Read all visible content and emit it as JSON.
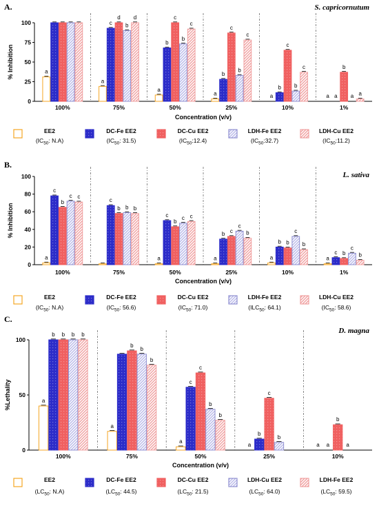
{
  "colors": {
    "EE2": "#f5a623",
    "DC-Fe EE2": "#2c2cc9",
    "DC-Cu EE2": "#f06060",
    "LDH-Fe EE2": "#b8b8e8",
    "LDH-Cu EE2": "#f0a0a0"
  },
  "chart_data": [
    {
      "type": "bar",
      "panel_label": "A.",
      "species": "S. capricornutum",
      "xlabel": "Concentration (v/v)",
      "ylabel": "% Inhibition",
      "ylim": [
        0,
        100
      ],
      "yticks": [
        0,
        25,
        50,
        75,
        100
      ],
      "grid": false,
      "legend_position": "bottom",
      "categories": [
        "100%",
        "75%",
        "50%",
        "25%",
        "10%",
        "1%"
      ],
      "series": [
        {
          "name": "EE2",
          "ic_label": "(IC50: N.A)",
          "color": "#f5a623",
          "pattern": "open",
          "values": [
            31,
            19,
            8,
            3,
            0,
            0
          ],
          "letters": [
            "a",
            "a",
            "a",
            "a",
            "a",
            "a"
          ]
        },
        {
          "name": "DC-Fe EE2",
          "ic_label": "(IC50: 31.5)",
          "color": "#2c2cc9",
          "pattern": "dots",
          "values": [
            100,
            93,
            68,
            28,
            11,
            0
          ],
          "letters": [
            "",
            "c",
            "b",
            "b",
            "b",
            "a"
          ]
        },
        {
          "name": "DC-Cu EE2",
          "ic_label": "(IC50:12.4)",
          "color": "#f06060",
          "pattern": "dots",
          "values": [
            100,
            100,
            100,
            87,
            65,
            37
          ],
          "letters": [
            "",
            "d",
            "c",
            "c",
            "c",
            "b"
          ]
        },
        {
          "name": "LDH-Fe EE2",
          "ic_label": "(IC50:32.7)",
          "color": "#b8b8e8",
          "pattern": "diag",
          "values": [
            100,
            90,
            73,
            33,
            13,
            0
          ],
          "letters": [
            "",
            "b",
            "b",
            "b",
            "b",
            "a"
          ]
        },
        {
          "name": "LDH-Cu EE2",
          "ic_label": "(IC50:11.2)",
          "color": "#f0a0a0",
          "pattern": "diag",
          "values": [
            100,
            100,
            92,
            78,
            37,
            3
          ],
          "letters": [
            "",
            "d",
            "c",
            "c",
            "c",
            "a"
          ]
        }
      ]
    },
    {
      "type": "bar",
      "panel_label": "B.",
      "species": "L. sativa",
      "xlabel": "Concentration (v/v)",
      "ylabel": "% Inhibition",
      "ylim": [
        0,
        100
      ],
      "yticks": [
        0,
        20,
        40,
        60,
        80,
        100
      ],
      "grid": false,
      "legend_position": "bottom",
      "categories": [
        "100%",
        "75%",
        "50%",
        "25%",
        "10%",
        "1%"
      ],
      "series": [
        {
          "name": "EE2",
          "ic_label": "(IC50: N.A)",
          "color": "#f5a623",
          "pattern": "open",
          "values": [
            2,
            1,
            1,
            1,
            2,
            1
          ],
          "letters": [
            "a",
            "",
            "a",
            "a",
            "a",
            "a"
          ]
        },
        {
          "name": "DC-Fe EE2",
          "ic_label": "(IC50: 56.6)",
          "color": "#2c2cc9",
          "pattern": "dots",
          "values": [
            78,
            67,
            50,
            29,
            20,
            8
          ],
          "letters": [
            "c",
            "c",
            "c",
            "b",
            "b",
            "c"
          ]
        },
        {
          "name": "DC-Cu EE2",
          "ic_label": "(IC50: 71.0)",
          "color": "#f06060",
          "pattern": "dots",
          "values": [
            65,
            58,
            43,
            32,
            19,
            7
          ],
          "letters": [
            "b",
            "b",
            "b",
            "c",
            "b",
            "b"
          ]
        },
        {
          "name": "LDH-Fe EE2",
          "ic_label": "(ILC50: 64.1)",
          "color": "#b8b8e8",
          "pattern": "diag",
          "values": [
            72,
            59,
            47,
            38,
            32,
            13
          ],
          "letters": [
            "c",
            "b",
            "c",
            "c",
            "c",
            "c"
          ]
        },
        {
          "name": "LDH-Cu EE2",
          "ic_label": "(IC50: 58.6)",
          "color": "#f0a0a0",
          "pattern": "diag",
          "values": [
            71,
            58,
            49,
            30,
            17,
            5
          ],
          "letters": [
            "c",
            "b",
            "c",
            "b",
            "b",
            "b"
          ]
        }
      ]
    },
    {
      "type": "bar",
      "panel_label": "C.",
      "species": "D. magna",
      "xlabel": "Concentration (v/v)",
      "ylabel": "%Lethality",
      "ylim": [
        0,
        100
      ],
      "yticks": [
        0,
        50,
        100
      ],
      "grid": false,
      "legend_position": "bottom",
      "categories": [
        "100%",
        "75%",
        "50%",
        "25%",
        "10%"
      ],
      "series": [
        {
          "name": "EE2",
          "ic_label": "(LC50: N.A)",
          "color": "#f5a623",
          "pattern": "open",
          "values": [
            40,
            17,
            3,
            0,
            0
          ],
          "letters": [
            "a",
            "a",
            "a",
            "a",
            "a"
          ]
        },
        {
          "name": "DC-Fe EE2",
          "ic_label": "(LC50: 44.5)",
          "color": "#2c2cc9",
          "pattern": "dots",
          "values": [
            100,
            87,
            57,
            10,
            0
          ],
          "letters": [
            "b",
            "",
            "c",
            "b",
            "a"
          ]
        },
        {
          "name": "DC-Cu EE2",
          "ic_label": "(LC50: 21.5)",
          "color": "#f06060",
          "pattern": "dots",
          "values": [
            100,
            90,
            70,
            47,
            23
          ],
          "letters": [
            "b",
            "b",
            "c",
            "c",
            "b"
          ]
        },
        {
          "name": "LDH-Cu EE2",
          "ic_label": "(LC50: 64.0)",
          "color": "#b8b8e8",
          "pattern": "diag",
          "values": [
            100,
            87,
            37,
            7,
            0
          ],
          "letters": [
            "b",
            "b",
            "b",
            "b",
            "a"
          ]
        },
        {
          "name": "LDH-Fe EE2",
          "ic_label": "(LC50: 59.5)",
          "color": "#f0a0a0",
          "pattern": "diag",
          "values": [
            100,
            77,
            27,
            0,
            0
          ],
          "letters": [
            "b",
            "b",
            "b",
            "",
            ""
          ]
        }
      ]
    }
  ]
}
